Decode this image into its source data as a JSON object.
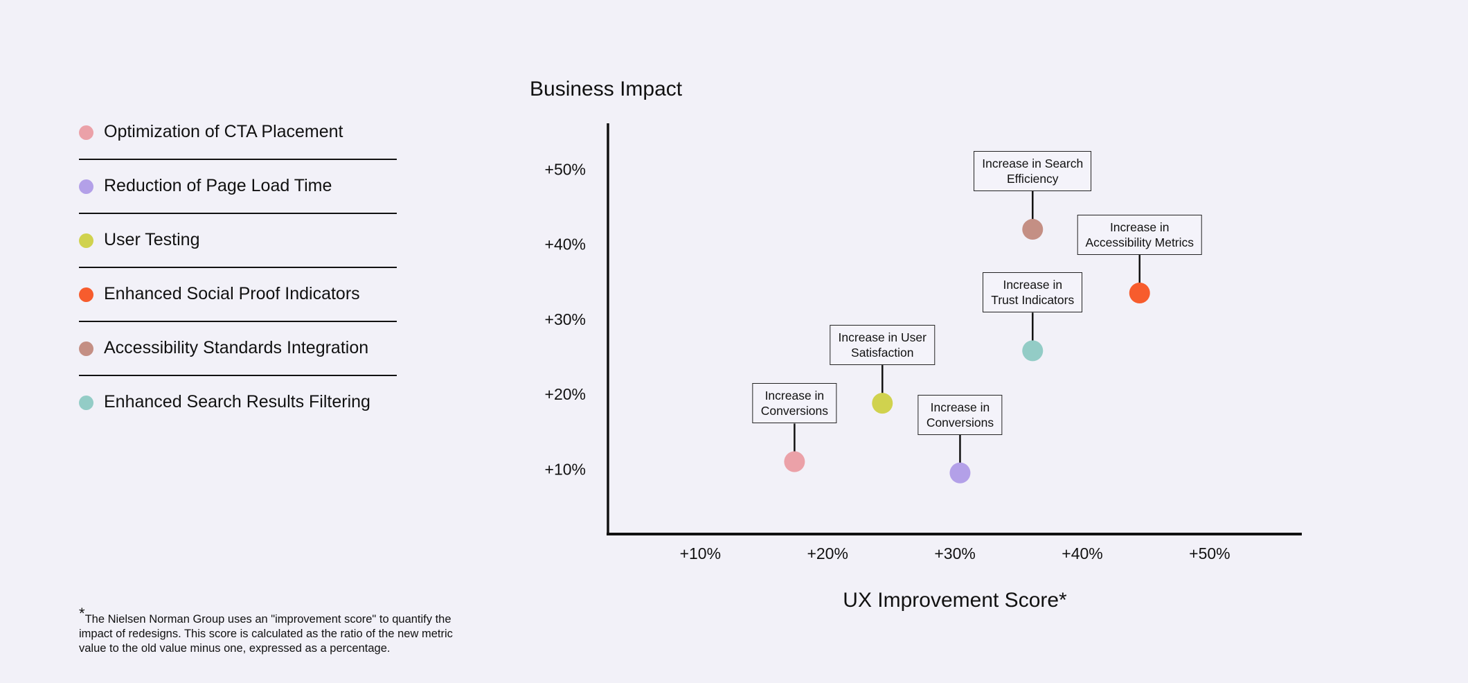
{
  "legend": [
    {
      "label": "Optimization of CTA Placement",
      "color": "#eba1a8"
    },
    {
      "label": "Reduction of Page Load Time",
      "color": "#b3a0e8"
    },
    {
      "label": "User Testing",
      "color": "#d0d24e"
    },
    {
      "label": "Enhanced Social Proof Indicators",
      "color": "#f75c2d"
    },
    {
      "label": "Accessibility Standards Integration",
      "color": "#c48f84"
    },
    {
      "label": "Enhanced Search Results Filtering",
      "color": "#93ccc6"
    }
  ],
  "footnote": {
    "star": "*",
    "text": "The Nielsen Norman Group uses an \"improvement score\" to quantify the impact of redesigns. This score is calculated as the ratio of the new metric value to the old value minus one, expressed as a percentage."
  },
  "chart_data": {
    "type": "scatter",
    "ylabel": "Business Impact",
    "xlabel": "UX Improvement Score*",
    "x_ticks": [
      "+10%",
      "+20%",
      "+30%",
      "+40%",
      "+50%"
    ],
    "y_ticks": [
      "+50%",
      "+40%",
      "+30%",
      "+20%",
      "+10%"
    ],
    "x_tick_values": [
      10,
      20,
      30,
      40,
      50
    ],
    "y_tick_values": [
      50,
      40,
      30,
      20,
      10
    ],
    "grid": false,
    "points": [
      {
        "series": "Optimization of CTA Placement",
        "x": 17.4,
        "y": 11,
        "label": "Increase in\nConversions",
        "color": "#eba1a8"
      },
      {
        "series": "Reduction of Page Load Time",
        "x": 30.4,
        "y": 9.5,
        "label": "Increase in\nConversions",
        "color": "#b3a0e8"
      },
      {
        "series": "User Testing",
        "x": 24.3,
        "y": 18.8,
        "label": "Increase in User\nSatisfaction",
        "color": "#d0d24e"
      },
      {
        "series": "Enhanced Social Proof Indicators",
        "x": 44.5,
        "y": 33.5,
        "label": "Increase in\nAccessibility Metrics",
        "color": "#f75c2d"
      },
      {
        "series": "Accessibility Standards Integration",
        "x": 36.1,
        "y": 42,
        "label": "Increase in Search\nEfficiency",
        "color": "#c48f84"
      },
      {
        "series": "Enhanced Search Results Filtering",
        "x": 36.1,
        "y": 25.8,
        "label": "Increase in\nTrust Indicators",
        "color": "#93ccc6"
      }
    ]
  }
}
